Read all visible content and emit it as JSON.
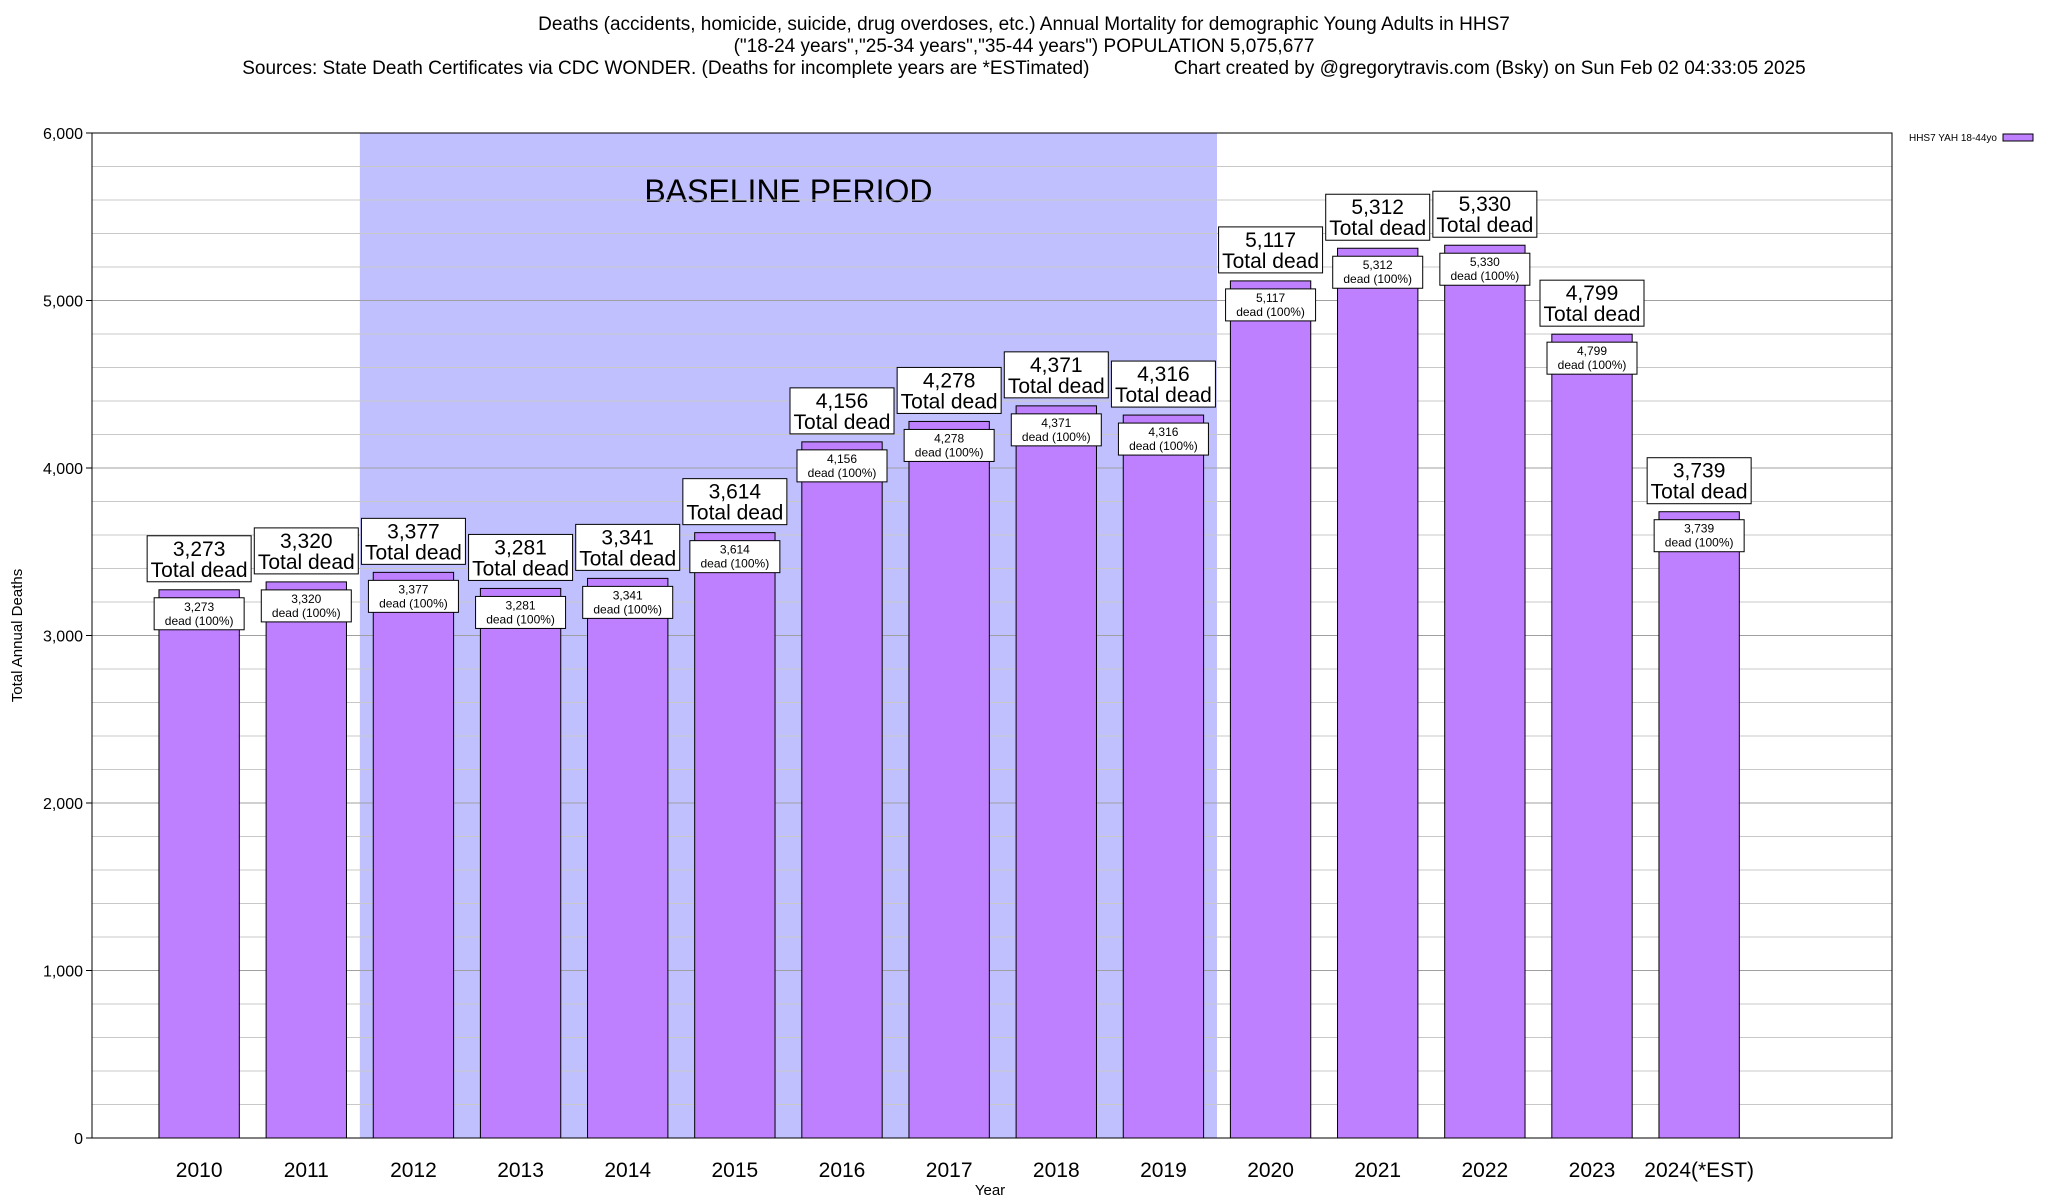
{
  "title_lines": [
    "Deaths (accidents, homicide, suicide, drug overdoses, etc.) Annual Mortality for demographic Young Adults in HHS7",
    "(\"18-24 years\",\"25-34 years\",\"35-44 years\") POPULATION 5,075,677",
    "Sources: State Death Certificates via CDC WONDER. (Deaths for incomplete years are *ESTimated)                Chart created by @gregorytravis.com (Bsky) on Sun Feb 02 04:33:05 2025"
  ],
  "chart_data": {
    "type": "bar",
    "xlabel": "Year",
    "ylabel": "Total Annual Deaths",
    "ylim": [
      0,
      6000
    ],
    "y_ticks": [
      0,
      1000,
      2000,
      3000,
      4000,
      5000,
      6000
    ],
    "y_tick_labels": [
      "0",
      "1,000",
      "2,000",
      "3,000",
      "4,000",
      "5,000",
      "6,000"
    ],
    "y_minor_step": 200,
    "grid": true,
    "legend": {
      "label": "HHS7 YAH 18-44yo",
      "placement": "top-right"
    },
    "baseline_period": {
      "label": "BASELINE PERIOD",
      "from": "2012",
      "to": "2019",
      "color": "#c0c0ff"
    },
    "bar_color": "#bf80ff",
    "categories": [
      "2010",
      "2011",
      "2012",
      "2013",
      "2014",
      "2015",
      "2016",
      "2017",
      "2018",
      "2019",
      "2020",
      "2021",
      "2022",
      "2023",
      "2024(*EST)"
    ],
    "series": [
      {
        "name": "HHS7 YAH 18-44yo",
        "values": [
          3273,
          3320,
          3377,
          3281,
          3341,
          3614,
          4156,
          4278,
          4371,
          4316,
          5117,
          5312,
          5330,
          4799,
          3739
        ]
      }
    ],
    "top_labels": [
      "3,273",
      "3,320",
      "3,377",
      "3,281",
      "3,341",
      "3,614",
      "4,156",
      "4,278",
      "4,371",
      "4,316",
      "5,117",
      "5,312",
      "5,330",
      "4,799",
      "3,739"
    ],
    "top_label_suffix": "Total dead",
    "inner_labels": [
      "3,273",
      "3,320",
      "3,377",
      "3,281",
      "3,341",
      "3,614",
      "4,156",
      "4,278",
      "4,371",
      "4,316",
      "5,117",
      "5,312",
      "5,330",
      "4,799",
      "3,739"
    ],
    "inner_label_suffix": "dead (100%)"
  }
}
